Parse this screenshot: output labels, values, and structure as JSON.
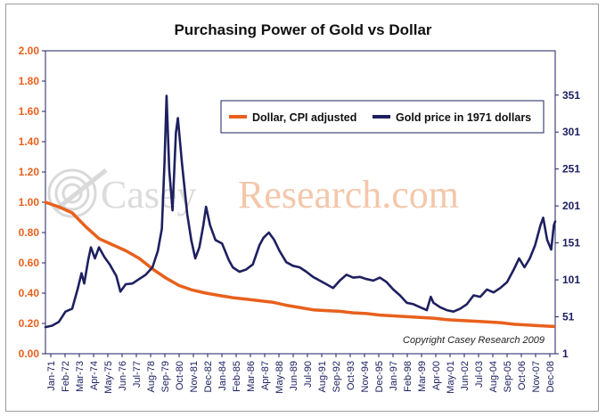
{
  "chart_data": {
    "type": "line",
    "title": "Purchasing Power of Gold vs Dollar",
    "left_axis": {
      "ylim": [
        0,
        2.0
      ],
      "ticks": [
        "0.00",
        "0.20",
        "0.40",
        "0.60",
        "0.80",
        "1.00",
        "1.20",
        "1.40",
        "1.60",
        "1.80",
        "2.00"
      ],
      "color": "#e8601c"
    },
    "right_axis": {
      "ylim": [
        1,
        411
      ],
      "ticks": [
        "1",
        "51",
        "101",
        "151",
        "201",
        "251",
        "301",
        "351"
      ],
      "color": "#1e2060"
    },
    "x_ticks": [
      "Jan-71",
      "Feb-72",
      "Mar-73",
      "Apr-74",
      "May-75",
      "Jun-76",
      "Jul-77",
      "Aug-78",
      "Sep-79",
      "Oct-80",
      "Nov-81",
      "Dec-82",
      "Jan-84",
      "Feb-85",
      "Mar-86",
      "Apr-87",
      "May-88",
      "Jun-89",
      "Jul-90",
      "Aug-91",
      "Sep-92",
      "Oct-93",
      "Nov-94",
      "Dec-95",
      "Jan-97",
      "Feb-98",
      "Mar-99",
      "Apr-00",
      "May-01",
      "Jun-02",
      "Jul-03",
      "Aug-04",
      "Sep-05",
      "Oct-06",
      "Nov-07",
      "Dec-08"
    ],
    "x_range": [
      1971.0,
      2009.1
    ],
    "legend_position": "top-right",
    "series": [
      {
        "name": "Dollar, CPI adjusted",
        "axis": "left",
        "color": "#e8601c",
        "points": [
          [
            1971.0,
            1.0
          ],
          [
            1972.0,
            0.97
          ],
          [
            1973.0,
            0.93
          ],
          [
            1974.0,
            0.84
          ],
          [
            1975.0,
            0.76
          ],
          [
            1976.0,
            0.72
          ],
          [
            1977.0,
            0.68
          ],
          [
            1978.0,
            0.63
          ],
          [
            1979.0,
            0.56
          ],
          [
            1980.0,
            0.5
          ],
          [
            1981.0,
            0.45
          ],
          [
            1982.0,
            0.42
          ],
          [
            1983.0,
            0.4
          ],
          [
            1984.0,
            0.385
          ],
          [
            1985.0,
            0.37
          ],
          [
            1986.0,
            0.36
          ],
          [
            1987.0,
            0.35
          ],
          [
            1988.0,
            0.34
          ],
          [
            1989.0,
            0.32
          ],
          [
            1990.0,
            0.305
          ],
          [
            1991.0,
            0.29
          ],
          [
            1992.0,
            0.285
          ],
          [
            1993.0,
            0.28
          ],
          [
            1994.0,
            0.27
          ],
          [
            1995.0,
            0.265
          ],
          [
            1996.0,
            0.255
          ],
          [
            1997.0,
            0.25
          ],
          [
            1998.0,
            0.245
          ],
          [
            1999.0,
            0.24
          ],
          [
            2000.0,
            0.235
          ],
          [
            2001.0,
            0.225
          ],
          [
            2002.0,
            0.22
          ],
          [
            2003.0,
            0.215
          ],
          [
            2004.0,
            0.21
          ],
          [
            2005.0,
            0.205
          ],
          [
            2006.0,
            0.195
          ],
          [
            2007.0,
            0.19
          ],
          [
            2008.0,
            0.185
          ],
          [
            2009.0,
            0.18
          ]
        ]
      },
      {
        "name": "Gold price in 1971 dollars",
        "axis": "right",
        "color": "#1e2060",
        "points": [
          [
            1971.0,
            37
          ],
          [
            1971.5,
            39
          ],
          [
            1972.0,
            44
          ],
          [
            1972.5,
            58
          ],
          [
            1973.0,
            62
          ],
          [
            1973.4,
            88
          ],
          [
            1973.7,
            110
          ],
          [
            1973.9,
            96
          ],
          [
            1974.2,
            128
          ],
          [
            1974.4,
            145
          ],
          [
            1974.7,
            130
          ],
          [
            1975.0,
            145
          ],
          [
            1975.4,
            132
          ],
          [
            1975.8,
            122
          ],
          [
            1976.3,
            106
          ],
          [
            1976.6,
            85
          ],
          [
            1977.0,
            95
          ],
          [
            1977.5,
            96
          ],
          [
            1978.0,
            102
          ],
          [
            1978.5,
            108
          ],
          [
            1979.0,
            118
          ],
          [
            1979.4,
            140
          ],
          [
            1979.7,
            170
          ],
          [
            1979.9,
            260
          ],
          [
            1980.05,
            350
          ],
          [
            1980.25,
            250
          ],
          [
            1980.5,
            195
          ],
          [
            1980.75,
            300
          ],
          [
            1980.9,
            320
          ],
          [
            1981.2,
            260
          ],
          [
            1981.6,
            190
          ],
          [
            1981.9,
            155
          ],
          [
            1982.2,
            130
          ],
          [
            1982.5,
            145
          ],
          [
            1982.8,
            175
          ],
          [
            1983.0,
            200
          ],
          [
            1983.3,
            175
          ],
          [
            1983.7,
            155
          ],
          [
            1984.2,
            150
          ],
          [
            1984.7,
            128
          ],
          [
            1985.0,
            118
          ],
          [
            1985.5,
            112
          ],
          [
            1986.0,
            115
          ],
          [
            1986.5,
            122
          ],
          [
            1987.0,
            148
          ],
          [
            1987.3,
            158
          ],
          [
            1987.7,
            165
          ],
          [
            1988.1,
            155
          ],
          [
            1988.5,
            140
          ],
          [
            1989.0,
            125
          ],
          [
            1989.5,
            120
          ],
          [
            1990.0,
            118
          ],
          [
            1990.5,
            112
          ],
          [
            1991.0,
            105
          ],
          [
            1991.5,
            100
          ],
          [
            1992.0,
            95
          ],
          [
            1992.5,
            90
          ],
          [
            1993.0,
            100
          ],
          [
            1993.5,
            108
          ],
          [
            1994.0,
            104
          ],
          [
            1994.5,
            105
          ],
          [
            1995.0,
            102
          ],
          [
            1995.5,
            100
          ],
          [
            1996.0,
            104
          ],
          [
            1996.5,
            98
          ],
          [
            1997.0,
            88
          ],
          [
            1997.5,
            80
          ],
          [
            1998.0,
            70
          ],
          [
            1998.5,
            68
          ],
          [
            1999.0,
            64
          ],
          [
            1999.5,
            60
          ],
          [
            1999.8,
            78
          ],
          [
            2000.0,
            70
          ],
          [
            2000.5,
            64
          ],
          [
            2001.0,
            60
          ],
          [
            2001.5,
            58
          ],
          [
            2002.0,
            62
          ],
          [
            2002.5,
            68
          ],
          [
            2003.0,
            80
          ],
          [
            2003.5,
            78
          ],
          [
            2004.0,
            88
          ],
          [
            2004.5,
            84
          ],
          [
            2005.0,
            90
          ],
          [
            2005.5,
            98
          ],
          [
            2006.0,
            115
          ],
          [
            2006.4,
            130
          ],
          [
            2006.8,
            118
          ],
          [
            2007.2,
            130
          ],
          [
            2007.6,
            148
          ],
          [
            2008.0,
            175
          ],
          [
            2008.2,
            185
          ],
          [
            2008.5,
            155
          ],
          [
            2008.8,
            142
          ],
          [
            2009.0,
            175
          ],
          [
            2009.1,
            180
          ]
        ]
      }
    ],
    "watermark": {
      "text_left": "Casey",
      "text_right": "Research.com"
    },
    "annotation": "Copyright Casey Research 2009"
  }
}
